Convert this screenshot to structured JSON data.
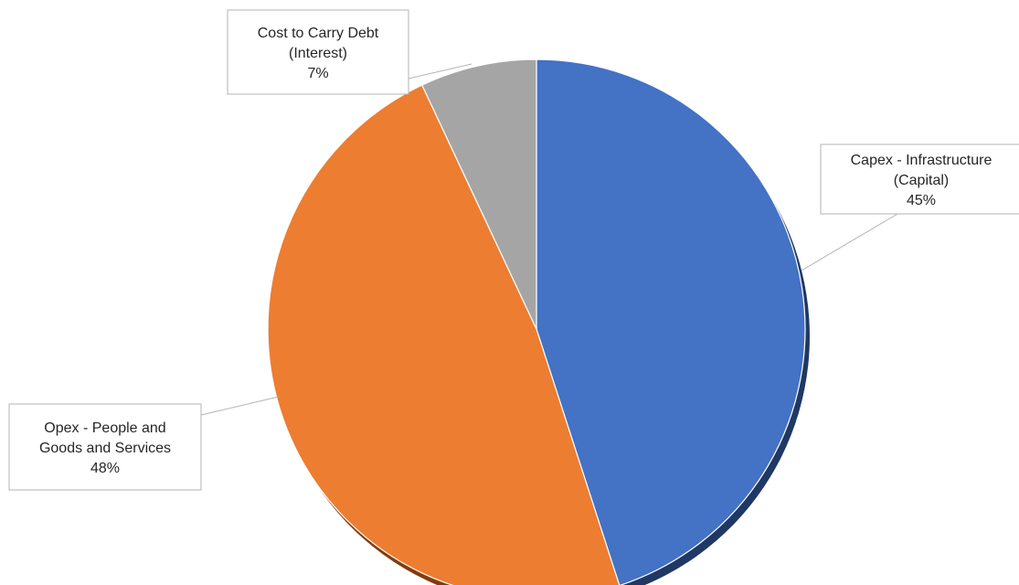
{
  "chart_data": {
    "type": "pie",
    "title": "",
    "slices": [
      {
        "name": "Capex - Infrastructure (Capital)",
        "label_lines": [
          "Capex - Infrastructure",
          "(Capital)"
        ],
        "pct_label": "45%",
        "value": 45,
        "color": "#4472C4",
        "shadow": "#1f3864"
      },
      {
        "name": "Opex - People and Goods and Services",
        "label_lines": [
          "Opex - People and",
          "Goods and Services"
        ],
        "pct_label": "48%",
        "value": 48,
        "color": "#ED7D31",
        "shadow": "#843c0c"
      },
      {
        "name": "Cost to Carry Debt (Interest)",
        "label_lines": [
          "Cost to Carry Debt",
          "(Interest)"
        ],
        "pct_label": "7%",
        "value": 7,
        "color": "#A5A5A5",
        "shadow": "#595959"
      }
    ],
    "legend": "none"
  }
}
